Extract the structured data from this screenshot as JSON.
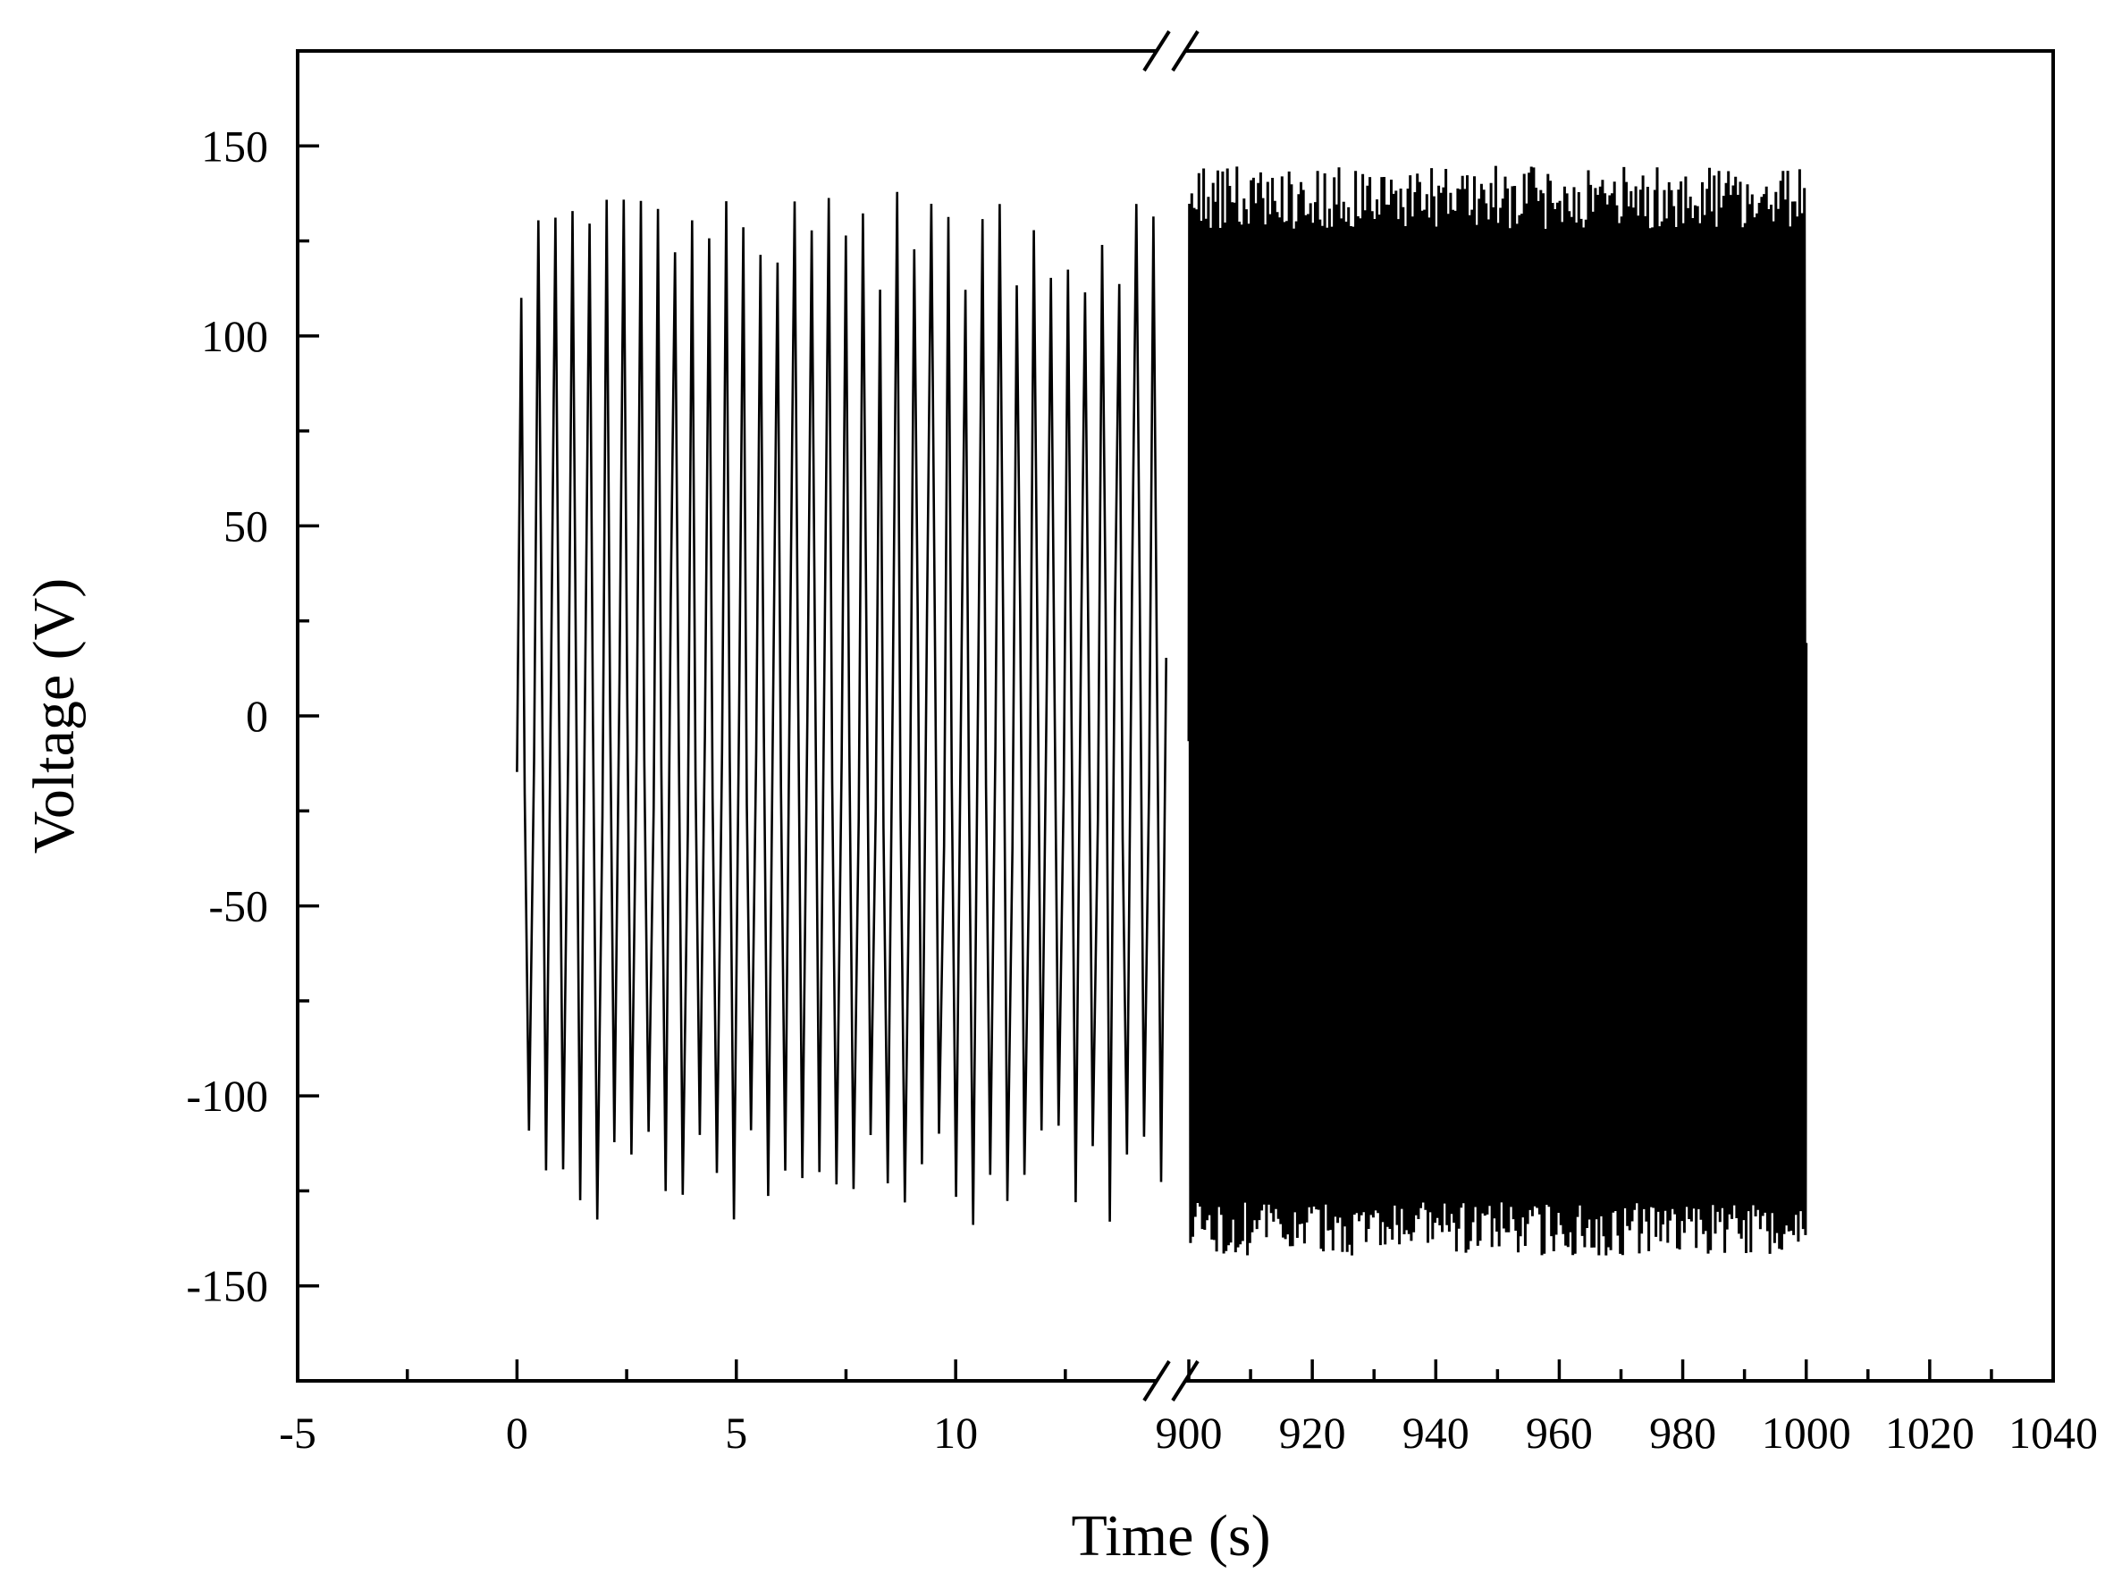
{
  "chart_data": {
    "type": "line",
    "title": "",
    "xlabel": "Time (s)",
    "ylabel": "Voltage (V)",
    "grid": false,
    "legend": "none",
    "axis_break": {
      "x_before": 14.5,
      "x_after": 900,
      "style": "double slash"
    },
    "x_segments": [
      {
        "xlim": [
          -5,
          14.5
        ],
        "xticks": [
          -5,
          0,
          5,
          10
        ]
      },
      {
        "xlim": [
          900,
          1040
        ],
        "xticks": [
          900,
          920,
          940,
          960,
          980,
          1000,
          1020,
          1040
        ]
      }
    ],
    "ylim": [
      -175,
      175
    ],
    "yticks": [
      -150,
      -100,
      -50,
      0,
      50,
      100,
      150
    ],
    "xtick_labels": [
      "-5",
      "0",
      "5",
      "10",
      "900",
      "920",
      "940",
      "960",
      "980",
      "1000",
      "1020",
      "1040"
    ],
    "ytick_labels": [
      "-150",
      "-100",
      "-50",
      "0",
      "50",
      "100",
      "150"
    ],
    "line_color": "#000000",
    "series": [
      {
        "segment": 0,
        "x_start": 0,
        "x_end": 14.8,
        "frequency_hz": 2.6,
        "peak_max_range": [
          110,
          138
        ],
        "peak_min_range": [
          -134,
          -107
        ],
        "values_summary": "dense oscillation, positive peaks ~110 to 138 V, negative peaks ~-107 to -134 V"
      },
      {
        "segment": 1,
        "x_start": 900,
        "x_end": 1000,
        "frequency_hz": 2.6,
        "peak_max_range": [
          128,
          145
        ],
        "peak_min_range": [
          -142,
          -128
        ],
        "values_summary": "very dense oscillation appearing as a filled band between ~-140 and ~142 V"
      }
    ]
  }
}
